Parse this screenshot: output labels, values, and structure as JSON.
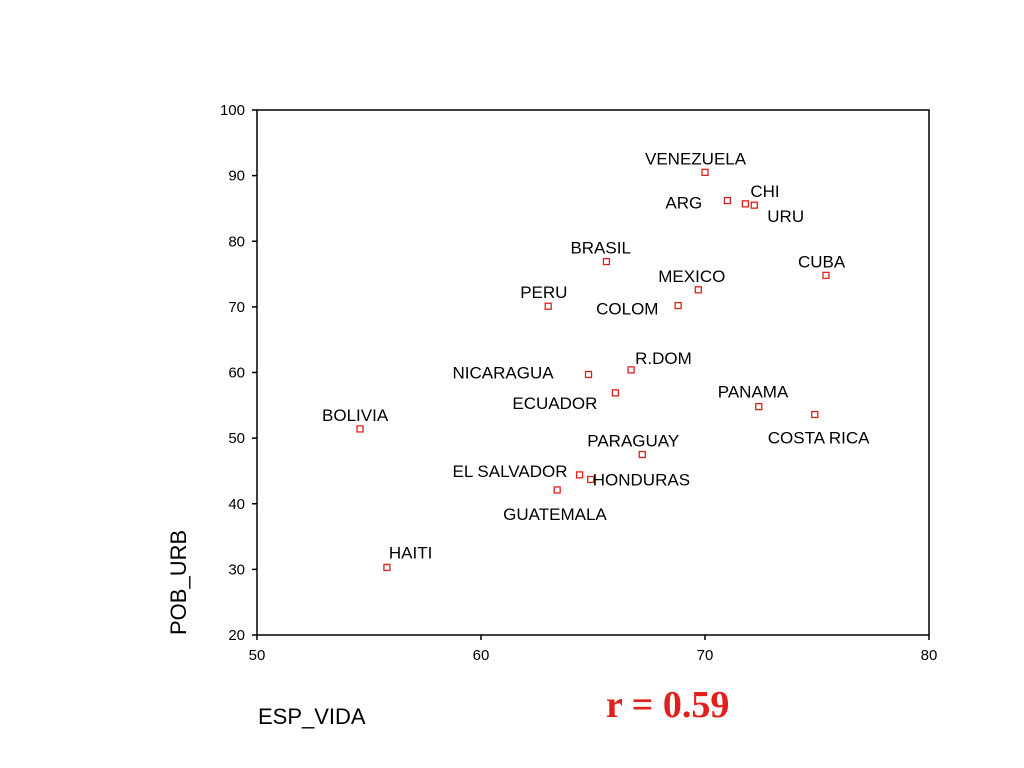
{
  "chart_data": {
    "type": "scatter",
    "xlabel": "ESP_VIDA",
    "ylabel": "POB_URB",
    "xlim": [
      50,
      80
    ],
    "ylim": [
      20,
      100
    ],
    "x_ticks": [
      50,
      60,
      70,
      80
    ],
    "y_ticks": [
      20,
      30,
      40,
      50,
      60,
      70,
      80,
      90,
      100
    ],
    "grid": false,
    "marker": "open-square",
    "marker_color": "#e0201b",
    "annotation": "r = 0.59",
    "annotation_color": "#e0201b",
    "points": [
      {
        "label": "VENEZUELA",
        "x": 70.0,
        "y": 90.5
      },
      {
        "label": "CHI",
        "x": 71.8,
        "y": 85.7
      },
      {
        "label": "URU",
        "x": 72.2,
        "y": 85.5
      },
      {
        "label": "ARG",
        "x": 71.0,
        "y": 86.2
      },
      {
        "label": "BRASIL",
        "x": 65.6,
        "y": 76.9
      },
      {
        "label": "CUBA",
        "x": 75.4,
        "y": 74.8
      },
      {
        "label": "MEXICO",
        "x": 69.7,
        "y": 72.6
      },
      {
        "label": "PERU",
        "x": 63.0,
        "y": 70.1
      },
      {
        "label": "COLOM",
        "x": 68.8,
        "y": 70.2
      },
      {
        "label": "R.DOM",
        "x": 66.7,
        "y": 60.4
      },
      {
        "label": "NICARAGUA",
        "x": 64.8,
        "y": 59.7
      },
      {
        "label": "ECUADOR",
        "x": 66.0,
        "y": 56.9
      },
      {
        "label": "PANAMA",
        "x": 72.4,
        "y": 54.8
      },
      {
        "label": "COSTA RICA",
        "x": 74.9,
        "y": 53.6
      },
      {
        "label": "BOLIVIA",
        "x": 54.6,
        "y": 51.4
      },
      {
        "label": "PARAGUAY",
        "x": 67.2,
        "y": 47.5
      },
      {
        "label": "EL SALVADOR",
        "x": 64.4,
        "y": 44.4
      },
      {
        "label": "HONDURAS",
        "x": 64.9,
        "y": 43.7
      },
      {
        "label": "GUATEMALA",
        "x": 63.4,
        "y": 42.1
      },
      {
        "label": "HAITI",
        "x": 55.8,
        "y": 30.3
      }
    ]
  }
}
